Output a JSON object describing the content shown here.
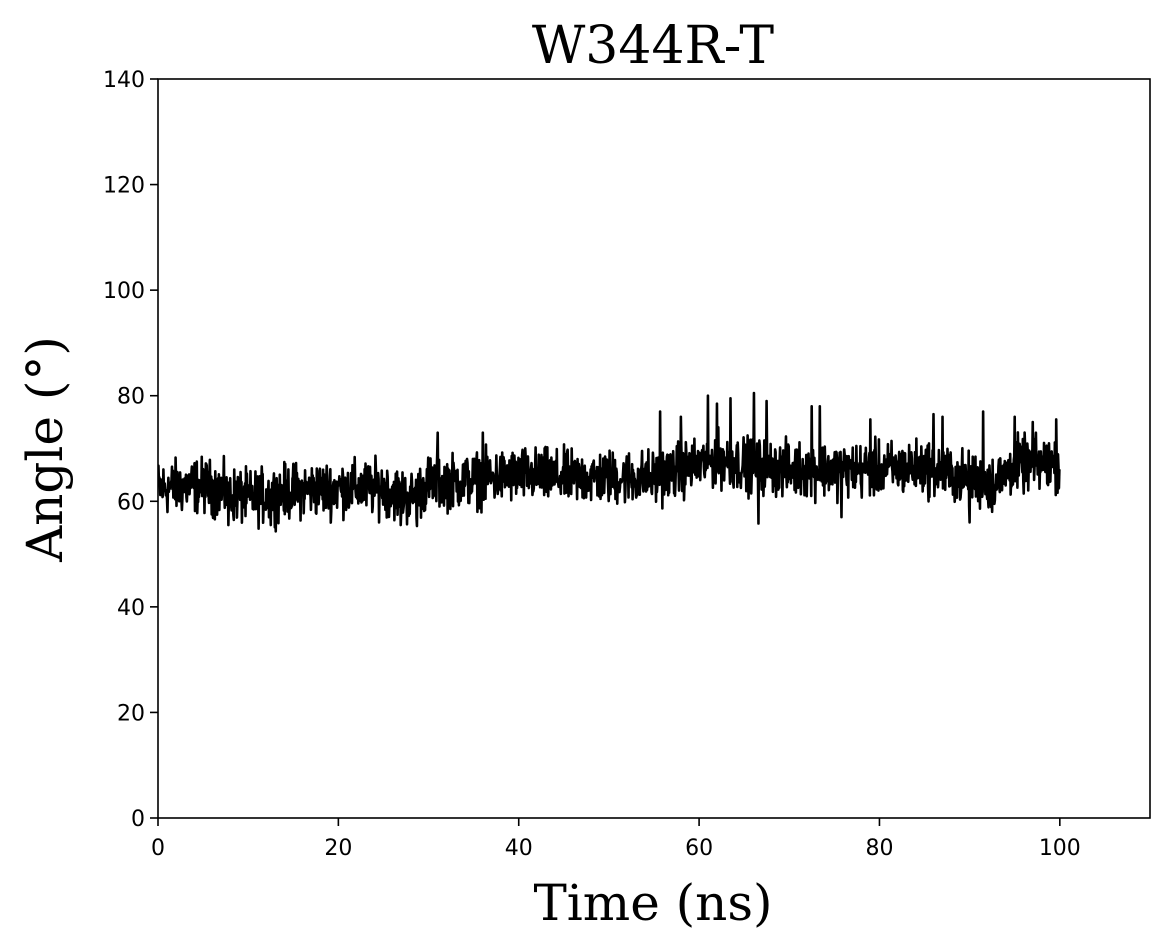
{
  "chart_data": {
    "type": "line",
    "title": "W344R-T",
    "xlabel": "Time (ns)",
    "ylabel": "Angle (°)",
    "xlim": [
      0,
      110
    ],
    "ylim": [
      0,
      140
    ],
    "xticks": [
      0,
      20,
      40,
      60,
      80,
      100
    ],
    "yticks": [
      0,
      20,
      40,
      60,
      80,
      100,
      120,
      140
    ],
    "grid": false,
    "legend": "none",
    "colors": {
      "line": "#000000",
      "axes": "#000000",
      "background": "#ffffff"
    },
    "series": [
      {
        "x_range": [
          0,
          100
        ],
        "sample_count": 2000,
        "trend": [
          [
            0,
            62.5
          ],
          [
            5,
            63
          ],
          [
            10,
            60.5
          ],
          [
            15,
            62
          ],
          [
            20,
            62.5
          ],
          [
            25,
            62.5
          ],
          [
            28,
            60.5
          ],
          [
            30,
            63.5
          ],
          [
            35,
            64
          ],
          [
            40,
            65
          ],
          [
            45,
            64.5
          ],
          [
            50,
            64.5
          ],
          [
            55,
            64.5
          ],
          [
            58,
            66
          ],
          [
            62,
            68
          ],
          [
            65,
            67
          ],
          [
            70,
            66
          ],
          [
            75,
            66
          ],
          [
            80,
            66
          ],
          [
            85,
            66.5
          ],
          [
            90,
            64
          ],
          [
            93,
            63.5
          ],
          [
            95,
            67
          ],
          [
            100,
            67
          ]
        ],
        "noise_amplitude": 2.5,
        "spikes": [
          [
            31,
            73
          ],
          [
            36,
            73
          ],
          [
            55.7,
            77
          ],
          [
            58,
            76
          ],
          [
            61,
            80
          ],
          [
            62,
            78.5
          ],
          [
            63.5,
            79.5
          ],
          [
            66.1,
            80.5
          ],
          [
            67.5,
            79
          ],
          [
            72.5,
            78
          ],
          [
            73.4,
            78
          ],
          [
            79,
            75.5
          ],
          [
            86,
            76.5
          ],
          [
            87,
            76
          ],
          [
            91.5,
            77
          ],
          [
            95,
            76
          ],
          [
            97,
            75
          ],
          [
            99.6,
            75.5
          ],
          [
            7.8,
            55.5
          ],
          [
            12.5,
            55.5
          ],
          [
            26.9,
            55.5
          ],
          [
            28.7,
            55.3
          ],
          [
            66.6,
            55.8
          ],
          [
            75.8,
            57
          ],
          [
            90,
            56
          ],
          [
            92.5,
            58
          ]
        ]
      }
    ]
  }
}
